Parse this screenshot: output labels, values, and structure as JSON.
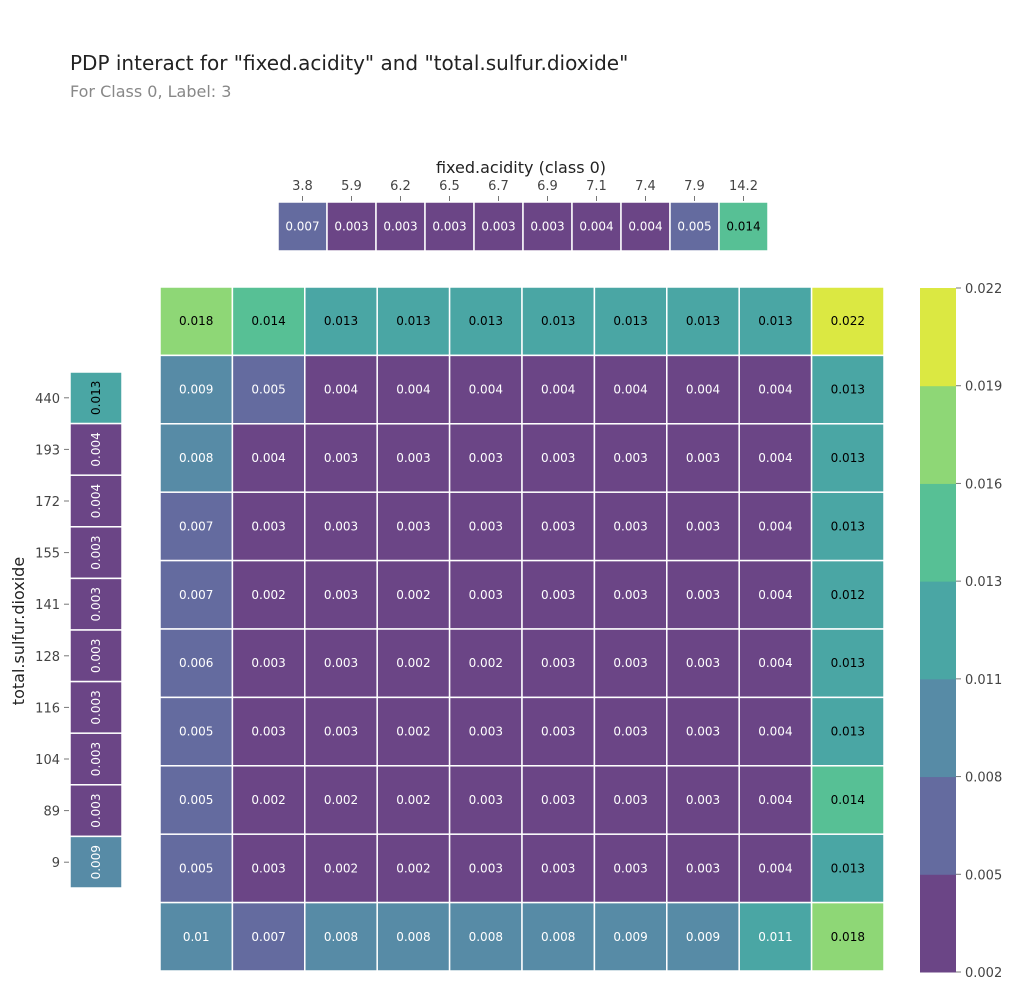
{
  "title": "PDP interact for \"fixed.acidity\" and \"total.sulfur.dioxide\"",
  "subtitle": "For Class 0, Label: 3",
  "chart_data": {
    "type": "heatmap",
    "xlabel": "fixed.acidity (class 0)",
    "ylabel": "total.sulfur.dioxide",
    "x_ticks": [
      "3.8",
      "5.9",
      "6.2",
      "6.5",
      "6.7",
      "6.9",
      "7.1",
      "7.4",
      "7.9",
      "14.2"
    ],
    "y_ticks": [
      "440",
      "193",
      "172",
      "155",
      "141",
      "128",
      "116",
      "104",
      "89",
      "9"
    ],
    "top_marginal": [
      "0.007",
      "0.003",
      "0.003",
      "0.003",
      "0.003",
      "0.003",
      "0.004",
      "0.004",
      "0.005",
      "0.014"
    ],
    "left_marginal": [
      "0.013",
      "0.004",
      "0.004",
      "0.003",
      "0.003",
      "0.003",
      "0.003",
      "0.003",
      "0.003",
      "0.009"
    ],
    "grid": [
      [
        "0.018",
        "0.014",
        "0.013",
        "0.013",
        "0.013",
        "0.013",
        "0.013",
        "0.013",
        "0.013",
        "0.022"
      ],
      [
        "0.009",
        "0.005",
        "0.004",
        "0.004",
        "0.004",
        "0.004",
        "0.004",
        "0.004",
        "0.004",
        "0.013"
      ],
      [
        "0.008",
        "0.004",
        "0.003",
        "0.003",
        "0.003",
        "0.003",
        "0.003",
        "0.003",
        "0.004",
        "0.013"
      ],
      [
        "0.007",
        "0.003",
        "0.003",
        "0.003",
        "0.003",
        "0.003",
        "0.003",
        "0.003",
        "0.004",
        "0.013"
      ],
      [
        "0.007",
        "0.002",
        "0.003",
        "0.002",
        "0.003",
        "0.003",
        "0.003",
        "0.003",
        "0.004",
        "0.012"
      ],
      [
        "0.006",
        "0.003",
        "0.003",
        "0.002",
        "0.002",
        "0.003",
        "0.003",
        "0.003",
        "0.004",
        "0.013"
      ],
      [
        "0.005",
        "0.003",
        "0.003",
        "0.002",
        "0.003",
        "0.003",
        "0.003",
        "0.003",
        "0.004",
        "0.013"
      ],
      [
        "0.005",
        "0.002",
        "0.002",
        "0.002",
        "0.003",
        "0.003",
        "0.003",
        "0.003",
        "0.004",
        "0.014"
      ],
      [
        "0.005",
        "0.003",
        "0.002",
        "0.002",
        "0.003",
        "0.003",
        "0.003",
        "0.003",
        "0.004",
        "0.013"
      ],
      [
        "0.01",
        "0.007",
        "0.008",
        "0.008",
        "0.008",
        "0.008",
        "0.009",
        "0.009",
        "0.011",
        "0.018"
      ]
    ],
    "colorbar": {
      "ticks": [
        "0.002",
        "0.005",
        "0.008",
        "0.011",
        "0.013",
        "0.016",
        "0.019",
        "0.022"
      ],
      "colors": [
        "#6b4586",
        "#646b9f",
        "#578ba6",
        "#4aa6a4",
        "#57c095",
        "#8ed776",
        "#dbe842"
      ],
      "range": [
        0.002,
        0.022
      ]
    },
    "grid_lines": false,
    "legend": "right"
  }
}
